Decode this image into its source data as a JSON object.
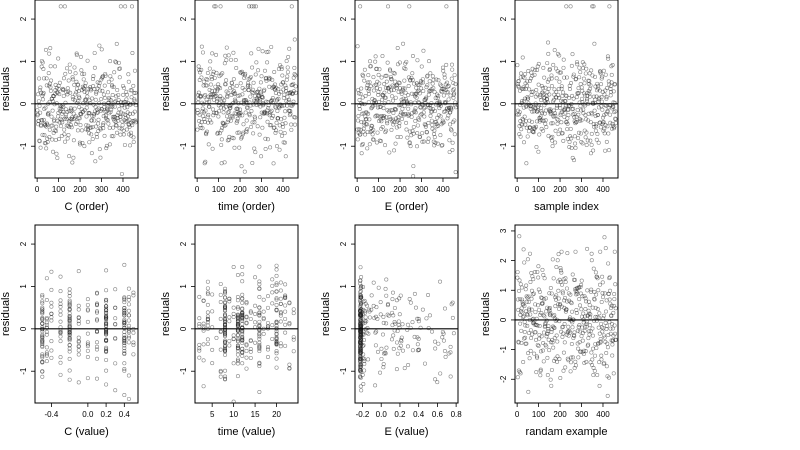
{
  "chart_data": [
    {
      "type": "scatter",
      "xlabel": "C (order)",
      "ylabel": "residuals",
      "xlim": [
        -10,
        470
      ],
      "ylim": [
        -1.75,
        2.45
      ],
      "xticks": [
        0,
        100,
        200,
        300,
        400
      ],
      "yticks": [
        -1,
        0,
        1,
        2
      ],
      "reference_line": 0,
      "gen": {
        "mode": "index",
        "seed": 11,
        "n": 460
      }
    },
    {
      "type": "scatter",
      "xlabel": "time (order)",
      "ylabel": "residuals",
      "xlim": [
        -10,
        470
      ],
      "ylim": [
        -1.75,
        2.45
      ],
      "xticks": [
        0,
        100,
        200,
        300,
        400
      ],
      "yticks": [
        -1,
        0,
        1,
        2
      ],
      "reference_line": 0,
      "gen": {
        "mode": "index",
        "seed": 23,
        "n": 460
      }
    },
    {
      "type": "scatter",
      "xlabel": "E (order)",
      "ylabel": "residuals",
      "xlim": [
        -10,
        470
      ],
      "ylim": [
        -1.75,
        2.45
      ],
      "xticks": [
        0,
        100,
        200,
        300,
        400
      ],
      "yticks": [
        -1,
        0,
        1,
        2
      ],
      "reference_line": 0,
      "gen": {
        "mode": "index",
        "seed": 37,
        "n": 460
      }
    },
    {
      "type": "scatter",
      "xlabel": "sample index",
      "ylabel": "residuals",
      "xlim": [
        -10,
        470
      ],
      "ylim": [
        -1.75,
        2.45
      ],
      "xticks": [
        0,
        100,
        200,
        300,
        400
      ],
      "yticks": [
        -1,
        0,
        1,
        2
      ],
      "reference_line": 0,
      "gen": {
        "mode": "index",
        "seed": 41,
        "n": 460
      }
    },
    {
      "type": "scatter",
      "xlabel": "C (value)",
      "ylabel": "residuals",
      "xlim": [
        -0.58,
        0.55
      ],
      "ylim": [
        -1.75,
        2.45
      ],
      "xticks": [
        -0.4,
        0.0,
        0.2,
        0.4
      ],
      "xticklabels": [
        "-0.4",
        "0.0",
        "0.2",
        "0.4"
      ],
      "yticks": [
        -1,
        0,
        1,
        2
      ],
      "reference_line": 0,
      "gen": {
        "mode": "discrete",
        "seed": 53,
        "levels": [
          -0.5,
          -0.45,
          -0.4,
          -0.3,
          -0.2,
          -0.1,
          0.0,
          0.1,
          0.2,
          0.3,
          0.4,
          0.45,
          0.5
        ],
        "dense_levels": [
          -0.5,
          -0.2,
          0.2,
          0.4
        ],
        "n": 300
      }
    },
    {
      "type": "scatter",
      "xlabel": "time (value)",
      "ylabel": "residuals",
      "xlim": [
        1,
        25
      ],
      "ylim": [
        -1.75,
        2.45
      ],
      "xticks": [
        5,
        10,
        15,
        20
      ],
      "yticks": [
        -1,
        0,
        1,
        2
      ],
      "reference_line": 0,
      "gen": {
        "mode": "discrete",
        "seed": 67,
        "levels": [
          2,
          3,
          4,
          5,
          6,
          7,
          8,
          9,
          10,
          11,
          12,
          13,
          14,
          15,
          16,
          17,
          18,
          19,
          20,
          21,
          22,
          23,
          24
        ],
        "dense_levels": [
          8,
          11,
          12,
          16,
          20
        ],
        "n": 360
      }
    },
    {
      "type": "scatter",
      "xlabel": "E (value)",
      "ylabel": "residuals",
      "xlim": [
        -0.28,
        0.82
      ],
      "ylim": [
        -1.75,
        2.45
      ],
      "xticks": [
        -0.2,
        0.0,
        0.2,
        0.4,
        0.6,
        0.8
      ],
      "xticklabels": [
        "-0.2",
        "0.0",
        "0.2",
        "0.4",
        "0.6",
        "0.8"
      ],
      "yticks": [
        -1,
        0,
        1,
        2
      ],
      "reference_line": 0,
      "gen": {
        "mode": "skewed",
        "seed": 79,
        "n": 330,
        "dense_x": -0.22
      }
    },
    {
      "type": "scatter",
      "xlabel": "randam example",
      "ylabel": "residuals",
      "xlim": [
        -10,
        470
      ],
      "ylim": [
        -2.8,
        3.2
      ],
      "xticks": [
        0,
        100,
        200,
        300,
        400
      ],
      "yticks": [
        -2,
        -1,
        0,
        1,
        2,
        3
      ],
      "reference_line": 0,
      "gen": {
        "mode": "index",
        "seed": 97,
        "n": 460,
        "sd": 1.0
      }
    }
  ]
}
